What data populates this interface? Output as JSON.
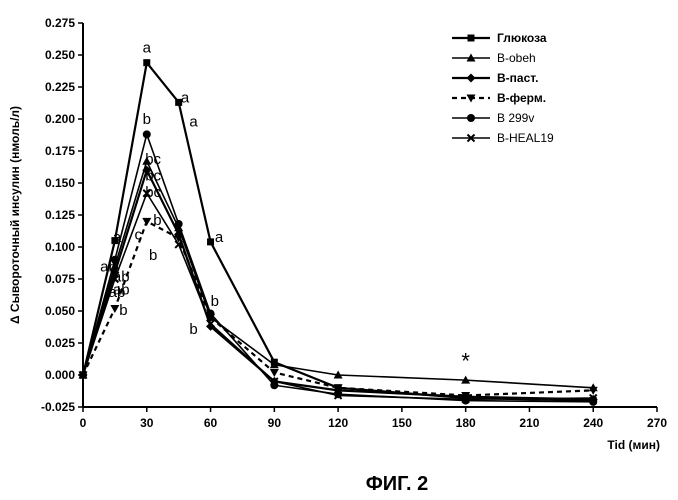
{
  "figure_caption": "ФИГ. 2",
  "chart_data": {
    "type": "line",
    "xlabel": "Tid (мин)",
    "ylabel": "Δ Сывороточный инсулин (нмоль/л)",
    "xlim": [
      0,
      270
    ],
    "ylim": [
      -0.025,
      0.275
    ],
    "xticks": [
      0,
      30,
      60,
      90,
      120,
      150,
      180,
      210,
      240,
      270
    ],
    "yticks": [
      -0.025,
      0.0,
      0.025,
      0.05,
      0.075,
      0.1,
      0.125,
      0.15,
      0.175,
      0.2,
      0.225,
      0.25,
      0.275
    ],
    "ytick_labels": [
      "-0.025",
      "0.000",
      "0.025",
      "0.050",
      "0.075",
      "0.100",
      "0.125",
      "0.150",
      "0.175",
      "0.200",
      "0.225",
      "0.250",
      "0.275"
    ],
    "xtick_labels": [
      "0",
      "30",
      "60",
      "90",
      "120",
      "150",
      "180",
      "210",
      "240",
      "270"
    ],
    "grid": false,
    "legend_position": "top-right",
    "series": [
      {
        "name": "Глюкоза",
        "marker": "square",
        "dash": "solid",
        "bold": true,
        "x": [
          0,
          15,
          30,
          45,
          60,
          90,
          120,
          180,
          240
        ],
        "y": [
          0.0,
          0.105,
          0.244,
          0.213,
          0.104,
          0.01,
          -0.01,
          -0.018,
          -0.02
        ]
      },
      {
        "name": "B-obeh",
        "marker": "triangle",
        "dash": "solid",
        "bold": false,
        "x": [
          0,
          15,
          30,
          45,
          60,
          90,
          120,
          180,
          240
        ],
        "y": [
          0.0,
          0.085,
          0.167,
          0.115,
          0.045,
          0.008,
          0.0,
          -0.004,
          -0.01
        ]
      },
      {
        "name": "B-паст.",
        "marker": "diamond",
        "dash": "solid",
        "bold": true,
        "x": [
          0,
          15,
          30,
          45,
          60,
          90,
          120,
          180,
          240
        ],
        "y": [
          0.0,
          0.08,
          0.16,
          0.11,
          0.038,
          -0.005,
          -0.012,
          -0.017,
          -0.019
        ]
      },
      {
        "name": "B-ферм.",
        "marker": "triangle-down",
        "dash": "dashed",
        "bold": true,
        "x": [
          0,
          15,
          30,
          45,
          60,
          90,
          120,
          180,
          240
        ],
        "y": [
          0.0,
          0.052,
          0.12,
          0.107,
          0.045,
          0.002,
          -0.01,
          -0.016,
          -0.012
        ]
      },
      {
        "name": "B 299v",
        "marker": "circle",
        "dash": "solid",
        "bold": false,
        "x": [
          0,
          15,
          30,
          45,
          60,
          90,
          120,
          180,
          240
        ],
        "y": [
          0.0,
          0.09,
          0.188,
          0.118,
          0.048,
          -0.008,
          -0.015,
          -0.02,
          -0.021
        ]
      },
      {
        "name": "B-HEAL19",
        "marker": "x",
        "dash": "solid",
        "bold": false,
        "x": [
          0,
          15,
          30,
          45,
          60,
          90,
          120,
          180,
          240
        ],
        "y": [
          0.0,
          0.075,
          0.142,
          0.102,
          0.04,
          -0.005,
          -0.016,
          -0.019,
          -0.018
        ]
      }
    ],
    "annotations": [
      {
        "text": "a",
        "x": 30,
        "y": 0.252
      },
      {
        "text": "a",
        "x": 48,
        "y": 0.213
      },
      {
        "text": "a",
        "x": 52,
        "y": 0.194
      },
      {
        "text": "b",
        "x": 30,
        "y": 0.196
      },
      {
        "text": "bc",
        "x": 33,
        "y": 0.165
      },
      {
        "text": "bc",
        "x": 33,
        "y": 0.152
      },
      {
        "text": "bc",
        "x": 33,
        "y": 0.139
      },
      {
        "text": "c",
        "x": 26,
        "y": 0.106
      },
      {
        "text": "b",
        "x": 35,
        "y": 0.117
      },
      {
        "text": "b",
        "x": 33,
        "y": 0.09
      },
      {
        "text": "a",
        "x": 64,
        "y": 0.104
      },
      {
        "text": "a",
        "x": 16,
        "y": 0.104
      },
      {
        "text": "ab",
        "x": 12,
        "y": 0.081
      },
      {
        "text": "ab",
        "x": 18,
        "y": 0.073
      },
      {
        "text": "ab",
        "x": 18,
        "y": 0.063
      },
      {
        "text": "ab",
        "x": 16,
        "y": 0.061
      },
      {
        "text": "b",
        "x": 19,
        "y": 0.047
      },
      {
        "text": "b",
        "x": 62,
        "y": 0.054
      },
      {
        "text": "b",
        "x": 52,
        "y": 0.032
      },
      {
        "text": "*",
        "x": 180,
        "y": 0.005
      }
    ]
  }
}
